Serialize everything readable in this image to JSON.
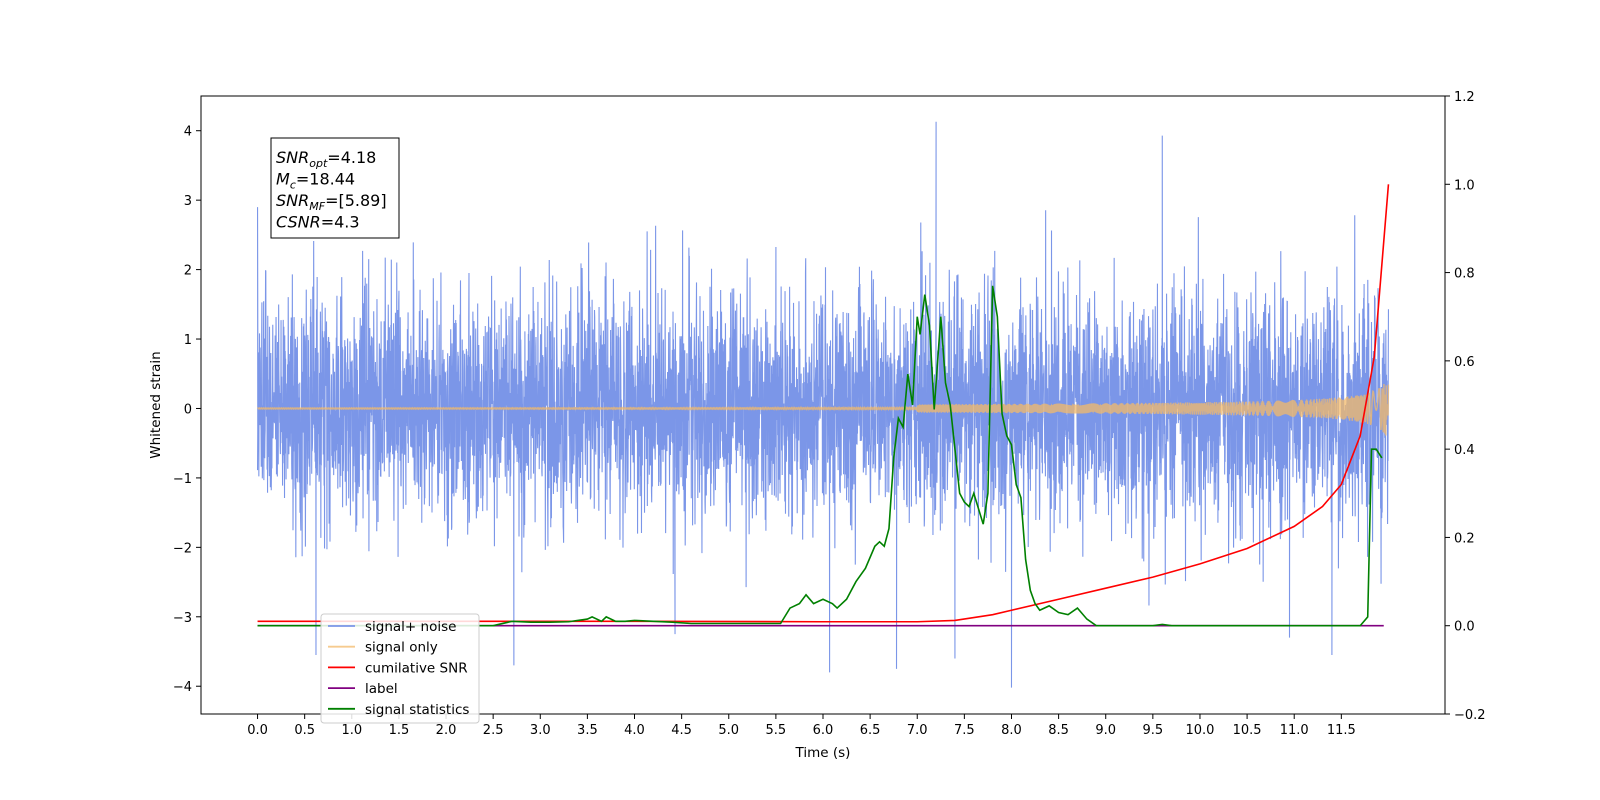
{
  "chart_data": {
    "type": "line",
    "title": "",
    "xlabel": "Time (s)",
    "ylabel": "Whitened strain",
    "y2label": "",
    "xlim": [
      -0.6,
      12.6
    ],
    "ylim": [
      -4.4,
      4.5
    ],
    "y2lim": [
      -0.2,
      1.2
    ],
    "x_ticks": [
      "0.0",
      "0.5",
      "1.0",
      "1.5",
      "2.0",
      "2.5",
      "3.0",
      "3.5",
      "4.0",
      "4.5",
      "5.0",
      "5.5",
      "6.0",
      "6.5",
      "7.0",
      "7.5",
      "8.0",
      "8.5",
      "9.0",
      "9.5",
      "10.0",
      "10.5",
      "11.0",
      "11.5"
    ],
    "y_ticks": [
      "4",
      "3",
      "2",
      "1",
      "0",
      "−1",
      "−2",
      "−3",
      "−4"
    ],
    "y2_ticks": [
      "1.2",
      "1.0",
      "0.8",
      "0.6",
      "0.4",
      "0.2",
      "0.0",
      "−0.2"
    ],
    "grid": false,
    "legend_position": "lower-left",
    "annotation": {
      "lines": [
        {
          "base": "SNR",
          "sub": "opt",
          "value": "=4.18"
        },
        {
          "base": "M",
          "sub": "c",
          "value": "=18.44"
        },
        {
          "base": "SNR",
          "sub": "MF",
          "value": "=[5.89]"
        },
        {
          "base": "CSNR",
          "sub": "",
          "value": "=4.3"
        }
      ]
    },
    "series": [
      {
        "name": "signal+ noise",
        "axis": "left",
        "color": "#7b96e8",
        "kind": "noise",
        "x_range": [
          0.0,
          12.0
        ],
        "std": 1.0,
        "peaks": [
          [
            0.0,
            2.9
          ],
          [
            0.62,
            -3.55
          ],
          [
            2.72,
            -3.7
          ],
          [
            6.07,
            -3.8
          ],
          [
            6.78,
            -3.75
          ],
          [
            7.2,
            4.13
          ],
          [
            7.4,
            -3.6
          ],
          [
            8.0,
            -4.02
          ],
          [
            9.6,
            3.93
          ],
          [
            11.4,
            -3.55
          ],
          [
            10.95,
            -3.3
          ],
          [
            4.43,
            -3.25
          ]
        ]
      },
      {
        "name": "signal only",
        "axis": "left",
        "color": "#f3b96a",
        "kind": "chirp",
        "x_range": [
          0.0,
          12.0
        ],
        "amplitude_end": 0.48
      },
      {
        "name": "cumilative SNR",
        "axis": "right",
        "color": "#ff0000",
        "kind": "line",
        "x": [
          0.0,
          2.0,
          4.0,
          6.0,
          7.0,
          7.4,
          7.8,
          8.0,
          8.5,
          9.0,
          9.5,
          10.0,
          10.5,
          11.0,
          11.3,
          11.5,
          11.7,
          11.85,
          12.0
        ],
        "y": [
          0.01,
          0.01,
          0.01,
          0.009,
          0.009,
          0.012,
          0.025,
          0.035,
          0.06,
          0.085,
          0.11,
          0.14,
          0.175,
          0.225,
          0.27,
          0.32,
          0.43,
          0.61,
          1.0
        ]
      },
      {
        "name": "label",
        "axis": "right",
        "color": "#800080",
        "kind": "line",
        "x": [
          0.0,
          11.95
        ],
        "y": [
          0.0,
          0.0
        ]
      },
      {
        "name": "signal statistics",
        "axis": "right",
        "color": "#008000",
        "kind": "line",
        "x": [
          0.0,
          1.0,
          2.0,
          2.5,
          2.7,
          2.9,
          3.1,
          3.3,
          3.5,
          3.55,
          3.65,
          3.7,
          3.8,
          3.9,
          4.0,
          4.2,
          4.4,
          4.6,
          5.0,
          5.3,
          5.55,
          5.65,
          5.75,
          5.82,
          5.9,
          6.0,
          6.1,
          6.15,
          6.25,
          6.35,
          6.45,
          6.55,
          6.6,
          6.65,
          6.7,
          6.75,
          6.8,
          6.85,
          6.9,
          6.95,
          7.0,
          7.03,
          7.08,
          7.13,
          7.18,
          7.25,
          7.3,
          7.35,
          7.4,
          7.45,
          7.5,
          7.55,
          7.6,
          7.7,
          7.75,
          7.8,
          7.85,
          7.9,
          7.95,
          8.0,
          8.05,
          8.1,
          8.15,
          8.2,
          8.25,
          8.3,
          8.4,
          8.5,
          8.6,
          8.7,
          8.8,
          8.9,
          9.0,
          9.1,
          9.2,
          9.5,
          9.6,
          9.7,
          10.0,
          11.0,
          11.7,
          11.78,
          11.82,
          11.87,
          11.93
        ],
        "y": [
          0.0,
          0.0,
          0.0,
          0.0,
          0.01,
          0.008,
          0.008,
          0.009,
          0.015,
          0.02,
          0.01,
          0.02,
          0.01,
          0.01,
          0.012,
          0.01,
          0.008,
          0.005,
          0.005,
          0.005,
          0.005,
          0.04,
          0.05,
          0.07,
          0.05,
          0.06,
          0.05,
          0.04,
          0.06,
          0.1,
          0.13,
          0.18,
          0.19,
          0.18,
          0.22,
          0.38,
          0.47,
          0.45,
          0.57,
          0.5,
          0.7,
          0.66,
          0.75,
          0.68,
          0.49,
          0.7,
          0.55,
          0.5,
          0.4,
          0.3,
          0.28,
          0.27,
          0.3,
          0.23,
          0.3,
          0.77,
          0.7,
          0.48,
          0.43,
          0.41,
          0.32,
          0.29,
          0.15,
          0.08,
          0.05,
          0.035,
          0.045,
          0.03,
          0.025,
          0.04,
          0.015,
          0.0,
          0.0,
          0.0,
          0.0,
          0.0,
          0.003,
          0.0,
          0.0,
          0.0,
          0.0,
          0.02,
          0.4,
          0.4,
          0.38
        ]
      }
    ]
  }
}
